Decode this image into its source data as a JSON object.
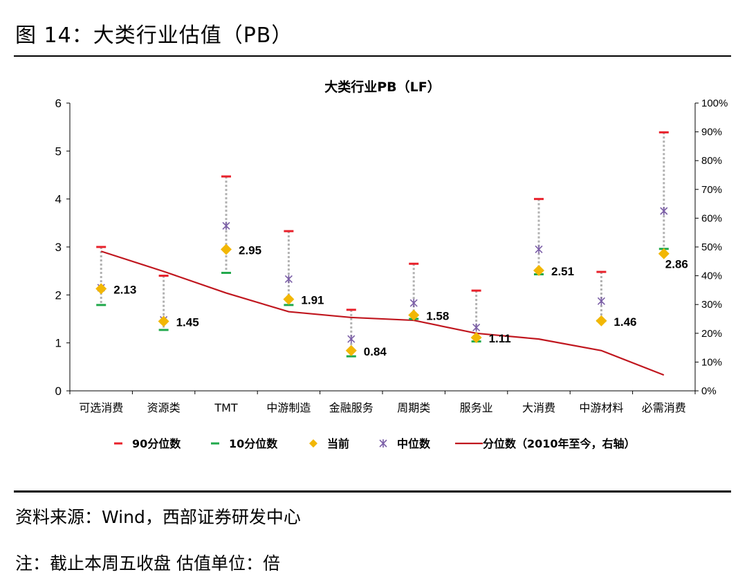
{
  "header": {
    "figure_title": "图 14：大类行业估值（PB）"
  },
  "footer": {
    "source": "资料来源：Wind，西部证券研发中心",
    "note": "注：截止本周五收盘 估值单位：倍"
  },
  "chart_data": {
    "type": "scatter",
    "title": "大类行业PB（LF）",
    "categories": [
      "可选消费",
      "资源类",
      "TMT",
      "中游制造",
      "金融服务",
      "周期类",
      "服务业",
      "大消费",
      "中游材料",
      "必需消费"
    ],
    "y_left": {
      "min": 0,
      "max": 6,
      "ticks": [
        "0",
        "1",
        "2",
        "3",
        "4",
        "5",
        "6"
      ]
    },
    "y_right": {
      "min": 0,
      "max": 100,
      "ticks": [
        "0%",
        "10%",
        "20%",
        "30%",
        "40%",
        "50%",
        "60%",
        "70%",
        "80%",
        "90%",
        "100%"
      ]
    },
    "series": [
      {
        "name": "90分位数",
        "key": "p90",
        "color": "#e8202a",
        "values": [
          3.0,
          2.4,
          4.47,
          3.33,
          1.69,
          2.65,
          2.09,
          4.0,
          2.48,
          5.39
        ]
      },
      {
        "name": "10分位数",
        "key": "p10",
        "color": "#1fa84a",
        "values": [
          1.79,
          1.27,
          2.46,
          1.79,
          0.72,
          1.5,
          1.03,
          2.43,
          1.46,
          2.96
        ]
      },
      {
        "name": "当前",
        "key": "current",
        "color": "#f2b705",
        "values": [
          2.13,
          1.45,
          2.95,
          1.91,
          0.84,
          1.58,
          1.11,
          2.51,
          1.46,
          2.86
        ]
      },
      {
        "name": "中位数",
        "key": "median",
        "color": "#7b5ea7",
        "values": [
          2.15,
          1.48,
          3.44,
          2.33,
          1.08,
          1.83,
          1.32,
          2.95,
          1.87,
          3.75
        ]
      },
      {
        "name": "分位数（2010年至今，右轴）",
        "key": "percentile",
        "color": "#c0161e",
        "axis": "right",
        "values": [
          48.5,
          41.5,
          34.0,
          27.5,
          25.5,
          24.5,
          20.0,
          18.0,
          14.0,
          5.5
        ]
      }
    ],
    "data_labels": [
      "2.13",
      "1.45",
      "2.95",
      "1.91",
      "0.84",
      "1.58",
      "1.11",
      "2.51",
      "1.46",
      "2.86"
    ],
    "legend": {
      "position": "bottom",
      "items": [
        "90分位数",
        "10分位数",
        "当前",
        "中位数",
        "分位数（2010年至今，右轴）"
      ]
    },
    "grid": false
  }
}
